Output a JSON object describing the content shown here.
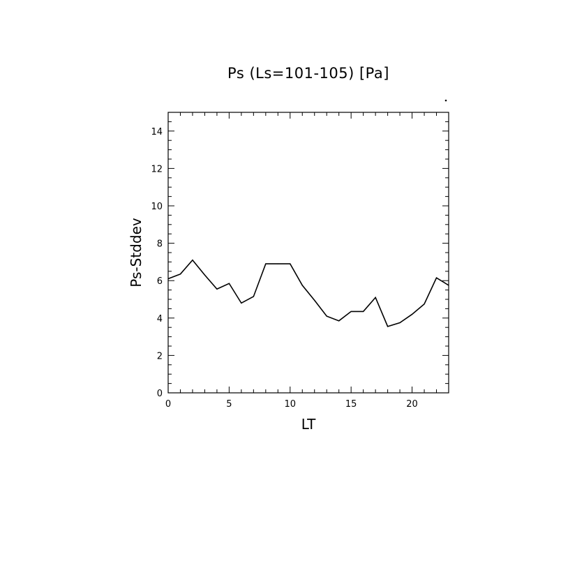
{
  "chart_data": {
    "type": "line",
    "title": "Ps (Ls=101-105) [Pa]",
    "xlabel": "LT",
    "ylabel": "Ps-Stddev",
    "xlim": [
      0,
      23
    ],
    "ylim": [
      0,
      15
    ],
    "x_ticks": [
      0,
      5,
      10,
      15,
      20
    ],
    "y_ticks": [
      0,
      2,
      4,
      6,
      8,
      10,
      12,
      14
    ],
    "grid": false,
    "legend": "none",
    "line_color": "#000000",
    "series": [
      {
        "x": [
          0,
          1,
          2,
          3,
          4,
          5,
          6,
          7,
          8,
          9,
          10,
          11,
          12,
          13,
          14,
          15,
          16,
          17,
          18,
          19,
          20,
          21,
          22,
          23
        ],
        "values": [
          6.1,
          6.35,
          7.1,
          6.3,
          5.55,
          5.85,
          4.8,
          5.15,
          6.9,
          6.9,
          6.9,
          5.75,
          4.95,
          4.1,
          3.85,
          4.35,
          4.35,
          5.1,
          3.55,
          3.75,
          4.2,
          4.75,
          6.15,
          5.75
        ]
      }
    ]
  }
}
